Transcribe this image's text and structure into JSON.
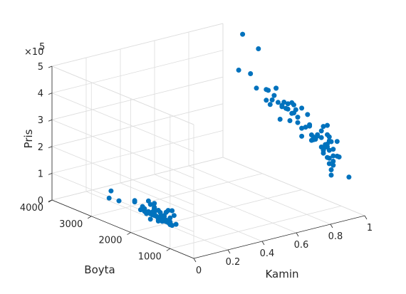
{
  "chart_data": {
    "type": "scatter",
    "title": "",
    "xlabel": "Kamin",
    "ylabel": "Boyta",
    "zlabel": "Pris",
    "z_exponent_label": "×10",
    "z_exponent_power": "5",
    "xlim": [
      0,
      1
    ],
    "ylim": [
      400,
      4000
    ],
    "zlim": [
      0,
      500000
    ],
    "x_ticks": [
      "0",
      "0.2",
      "0.4",
      "0.6",
      "0.8",
      "1"
    ],
    "y_ticks": [
      "1000",
      "2000",
      "3000",
      "4000"
    ],
    "z_ticks": [
      "0",
      "1",
      "2",
      "3",
      "4",
      "5"
    ],
    "grid": true,
    "marker_color": "#0072bd",
    "series": [
      {
        "x": [
          0,
          0,
          0,
          0,
          0,
          0,
          0,
          0,
          0,
          0,
          0,
          0,
          0,
          0,
          0,
          0,
          0,
          0,
          0,
          0,
          0,
          0,
          0,
          0,
          0,
          0,
          0,
          0,
          0,
          0,
          0,
          0,
          0,
          0,
          0,
          0,
          0,
          0,
          0,
          0,
          0,
          0,
          0,
          0,
          0,
          0,
          0,
          0,
          0,
          0,
          0,
          0,
          0,
          0,
          0,
          0,
          0,
          0,
          0,
          0,
          1,
          1,
          1,
          1,
          1,
          1,
          1,
          1,
          1,
          1,
          1,
          1,
          1,
          1,
          1,
          1,
          1,
          1,
          1,
          1,
          1,
          1,
          1,
          1,
          1,
          1,
          1,
          1,
          1,
          1,
          1,
          1,
          1,
          1,
          1,
          1,
          1,
          1,
          1,
          1,
          1,
          1,
          1,
          1,
          1,
          1,
          1,
          1,
          1,
          1,
          1,
          1,
          1,
          1,
          1,
          1,
          1,
          1,
          1,
          1,
          1,
          1,
          1,
          1,
          1,
          1,
          1,
          1,
          1,
          1,
          1,
          1
        ],
        "y": [
          2300,
          2550,
          1750,
          2500,
          1900,
          1450,
          1650,
          1600,
          1650,
          1700,
          1400,
          1600,
          1300,
          1250,
          1400,
          1500,
          1200,
          1450,
          1300,
          1200,
          1600,
          1400,
          1100,
          1250,
          1300,
          1000,
          1400,
          1050,
          1150,
          1500,
          1350,
          850,
          950,
          1000,
          1200,
          1150,
          1450,
          1300,
          1500,
          1700,
          1150,
          1100,
          1100,
          900,
          1200,
          950,
          1550,
          1400,
          1450,
          1400,
          1050,
          1000,
          1100,
          1350,
          1400,
          1550,
          1000,
          1100,
          1400,
          1900,
          3500,
          3300,
          3600,
          3100,
          2900,
          2850,
          2750,
          2650,
          3150,
          2900,
          2700,
          2600,
          2550,
          2500,
          2500,
          2450,
          2800,
          2650,
          2400,
          2250,
          2350,
          2300,
          2250,
          2100,
          2200,
          2150,
          2350,
          2200,
          2000,
          2000,
          2100,
          2000,
          1800,
          1900,
          1850,
          1700,
          1800,
          1600,
          1500,
          1450,
          1750,
          1500,
          1750,
          1450,
          1350,
          1350,
          1300,
          1400,
          1300,
          1400,
          1350,
          1250,
          1200,
          1100,
          1350,
          1650,
          1100,
          1700,
          1200,
          1300,
          1300,
          1600,
          1050,
          1200,
          1300,
          1450,
          1350,
          1200,
          800,
          1250,
          1250,
          1500
        ],
        "z": [
          100000,
          95000,
          100000,
          125000,
          120000,
          110000,
          100000,
          95000,
          110000,
          115000,
          130000,
          100000,
          90000,
          105000,
          110000,
          80000,
          95000,
          100000,
          85000,
          110000,
          95000,
          145000,
          100000,
          120000,
          125000,
          95000,
          120000,
          140000,
          110000,
          100000,
          100000,
          100000,
          145000,
          100000,
          90000,
          95000,
          100000,
          95000,
          135000,
          110000,
          115000,
          95000,
          130000,
          130000,
          110000,
          90000,
          145000,
          100000,
          105000,
          125000,
          95000,
          90000,
          130000,
          100000,
          130000,
          105000,
          115000,
          100000,
          125000,
          125000,
          490000,
          355000,
          350000,
          460000,
          320000,
          320000,
          290000,
          340000,
          310000,
          280000,
          310000,
          290000,
          230000,
          285000,
          280000,
          300000,
          270000,
          340000,
          280000,
          310000,
          300000,
          240000,
          270000,
          245000,
          275000,
          290000,
          280000,
          305000,
          305000,
          230000,
          265000,
          200000,
          250000,
          240000,
          290000,
          215000,
          255000,
          230000,
          250000,
          270000,
          220000,
          225000,
          200000,
          180000,
          245000,
          280000,
          225000,
          195000,
          240000,
          205000,
          200000,
          225000,
          200000,
          180000,
          210000,
          210000,
          235000,
          205000,
          175000,
          190000,
          160000,
          225000,
          180000,
          155000,
          140000,
          170000,
          160000,
          140000,
          120000,
          120000,
          100000,
          190000
        ]
      }
    ]
  }
}
